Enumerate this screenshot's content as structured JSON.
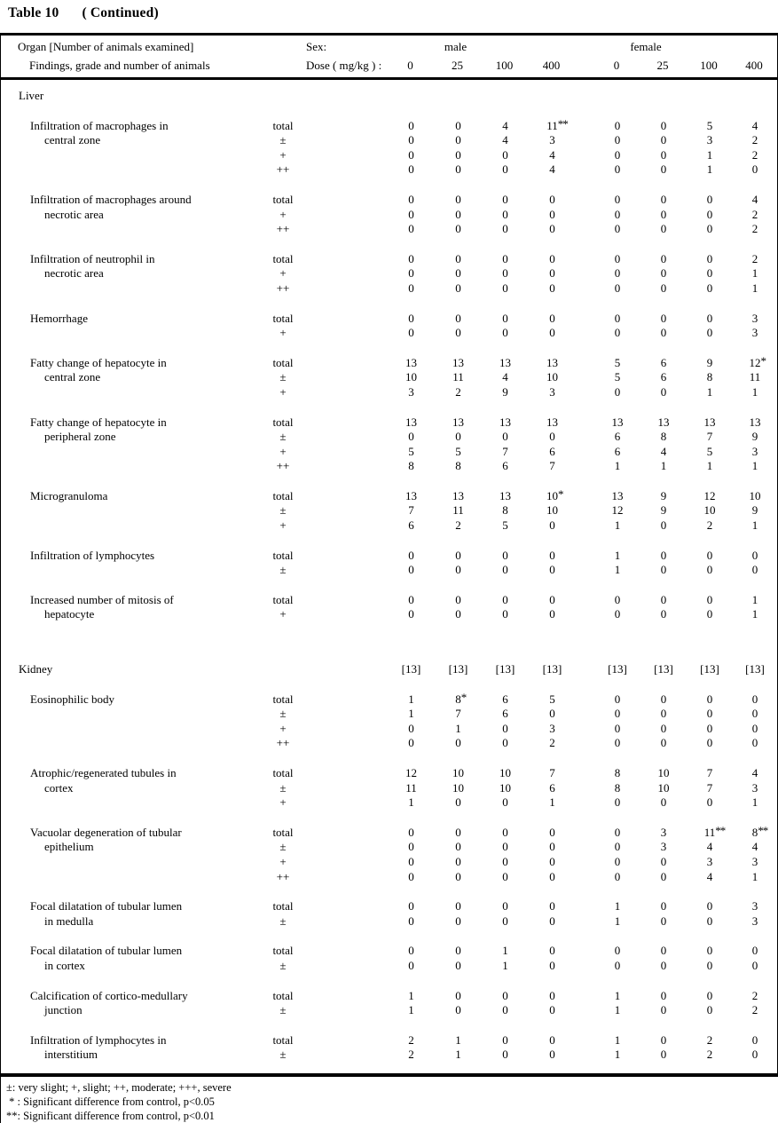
{
  "title": {
    "left": "Table 10",
    "right": "( Continued)"
  },
  "header": {
    "organ_label": "Organ [Number of animals examined]",
    "findings_label": "Findings, grade and number of animals",
    "sex_label": "Sex:",
    "dose_label": "Dose ( mg/kg ) :",
    "male_label": "male",
    "female_label": "female",
    "doses": [
      "0",
      "25",
      "100",
      "400",
      "0",
      "25",
      "100",
      "400"
    ]
  },
  "sections": [
    {
      "organ": "Liver",
      "organ_counts": null,
      "findings": [
        {
          "name": [
            "Infiltration of macrophages in",
            "central zone"
          ],
          "rows": [
            {
              "grade": "total",
              "values": [
                "0",
                "0",
                "4",
                "11**",
                "0",
                "0",
                "5",
                "4"
              ]
            },
            {
              "grade": "±",
              "values": [
                "0",
                "0",
                "4",
                "3",
                "0",
                "0",
                "3",
                "2"
              ]
            },
            {
              "grade": "+",
              "values": [
                "0",
                "0",
                "0",
                "4",
                "0",
                "0",
                "1",
                "2"
              ]
            },
            {
              "grade": "++",
              "values": [
                "0",
                "0",
                "0",
                "4",
                "0",
                "0",
                "1",
                "0"
              ]
            }
          ]
        },
        {
          "name": [
            "Infiltration of macrophages around",
            "necrotic area"
          ],
          "rows": [
            {
              "grade": "total",
              "values": [
                "0",
                "0",
                "0",
                "0",
                "0",
                "0",
                "0",
                "4"
              ]
            },
            {
              "grade": "+",
              "values": [
                "0",
                "0",
                "0",
                "0",
                "0",
                "0",
                "0",
                "2"
              ]
            },
            {
              "grade": "++",
              "values": [
                "0",
                "0",
                "0",
                "0",
                "0",
                "0",
                "0",
                "2"
              ]
            }
          ]
        },
        {
          "name": [
            "Infiltration of neutrophil in",
            "necrotic area"
          ],
          "rows": [
            {
              "grade": "total",
              "values": [
                "0",
                "0",
                "0",
                "0",
                "0",
                "0",
                "0",
                "2"
              ]
            },
            {
              "grade": "+",
              "values": [
                "0",
                "0",
                "0",
                "0",
                "0",
                "0",
                "0",
                "1"
              ]
            },
            {
              "grade": "++",
              "values": [
                "0",
                "0",
                "0",
                "0",
                "0",
                "0",
                "0",
                "1"
              ]
            }
          ]
        },
        {
          "name": [
            "Hemorrhage"
          ],
          "rows": [
            {
              "grade": "total",
              "values": [
                "0",
                "0",
                "0",
                "0",
                "0",
                "0",
                "0",
                "3"
              ]
            },
            {
              "grade": "+",
              "values": [
                "0",
                "0",
                "0",
                "0",
                "0",
                "0",
                "0",
                "3"
              ]
            }
          ]
        },
        {
          "name": [
            "Fatty change of hepatocyte in",
            "central zone"
          ],
          "rows": [
            {
              "grade": "total",
              "values": [
                "13",
                "13",
                "13",
                "13",
                "5",
                "6",
                "9",
                "12*"
              ]
            },
            {
              "grade": "±",
              "values": [
                "10",
                "11",
                "4",
                "10",
                "5",
                "6",
                "8",
                "11"
              ]
            },
            {
              "grade": "+",
              "values": [
                "3",
                "2",
                "9",
                "3",
                "0",
                "0",
                "1",
                "1"
              ]
            }
          ]
        },
        {
          "name": [
            "Fatty change of hepatocyte in",
            "peripheral zone"
          ],
          "rows": [
            {
              "grade": "total",
              "values": [
                "13",
                "13",
                "13",
                "13",
                "13",
                "13",
                "13",
                "13"
              ]
            },
            {
              "grade": "±",
              "values": [
                "0",
                "0",
                "0",
                "0",
                "6",
                "8",
                "7",
                "9"
              ]
            },
            {
              "grade": "+",
              "values": [
                "5",
                "5",
                "7",
                "6",
                "6",
                "4",
                "5",
                "3"
              ]
            },
            {
              "grade": "++",
              "values": [
                "8",
                "8",
                "6",
                "7",
                "1",
                "1",
                "1",
                "1"
              ]
            }
          ]
        },
        {
          "name": [
            "Microgranuloma"
          ],
          "rows": [
            {
              "grade": "total",
              "values": [
                "13",
                "13",
                "13",
                "10*",
                "13",
                "9",
                "12",
                "10"
              ]
            },
            {
              "grade": "±",
              "values": [
                "7",
                "11",
                "8",
                "10",
                "12",
                "9",
                "10",
                "9"
              ]
            },
            {
              "grade": "+",
              "values": [
                "6",
                "2",
                "5",
                "0",
                "1",
                "0",
                "2",
                "1"
              ]
            }
          ]
        },
        {
          "name": [
            "Infiltration of lymphocytes"
          ],
          "rows": [
            {
              "grade": "total",
              "values": [
                "0",
                "0",
                "0",
                "0",
                "1",
                "0",
                "0",
                "0"
              ]
            },
            {
              "grade": "±",
              "values": [
                "0",
                "0",
                "0",
                "0",
                "1",
                "0",
                "0",
                "0"
              ]
            }
          ]
        },
        {
          "name": [
            "Increased number of mitosis of",
            "hepatocyte"
          ],
          "rows": [
            {
              "grade": "total",
              "values": [
                "0",
                "0",
                "0",
                "0",
                "0",
                "0",
                "0",
                "1"
              ]
            },
            {
              "grade": "+",
              "values": [
                "0",
                "0",
                "0",
                "0",
                "0",
                "0",
                "0",
                "1"
              ]
            }
          ]
        }
      ]
    },
    {
      "organ": "Kidney",
      "organ_counts": [
        "[13]",
        "[13]",
        "[13]",
        "[13]",
        "[13]",
        "[13]",
        "[13]",
        "[13]"
      ],
      "findings": [
        {
          "name": [
            "Eosinophilic body"
          ],
          "rows": [
            {
              "grade": "total",
              "values": [
                "1",
                "8*",
                "6",
                "5",
                "0",
                "0",
                "0",
                "0"
              ]
            },
            {
              "grade": "±",
              "values": [
                "1",
                "7",
                "6",
                "0",
                "0",
                "0",
                "0",
                "0"
              ]
            },
            {
              "grade": "+",
              "values": [
                "0",
                "1",
                "0",
                "3",
                "0",
                "0",
                "0",
                "0"
              ]
            },
            {
              "grade": "++",
              "values": [
                "0",
                "0",
                "0",
                "2",
                "0",
                "0",
                "0",
                "0"
              ]
            }
          ]
        },
        {
          "name": [
            "Atrophic/regenerated tubules in",
            "cortex"
          ],
          "rows": [
            {
              "grade": "total",
              "values": [
                "12",
                "10",
                "10",
                "7",
                "8",
                "10",
                "7",
                "4"
              ]
            },
            {
              "grade": "±",
              "values": [
                "11",
                "10",
                "10",
                "6",
                "8",
                "10",
                "7",
                "3"
              ]
            },
            {
              "grade": "+",
              "values": [
                "1",
                "0",
                "0",
                "1",
                "0",
                "0",
                "0",
                "1"
              ]
            }
          ]
        },
        {
          "name": [
            "Vacuolar degeneration of tubular",
            "epithelium"
          ],
          "rows": [
            {
              "grade": "total",
              "values": [
                "0",
                "0",
                "0",
                "0",
                "0",
                "3",
                "11**",
                "8**"
              ]
            },
            {
              "grade": "±",
              "values": [
                "0",
                "0",
                "0",
                "0",
                "0",
                "3",
                "4",
                "4"
              ]
            },
            {
              "grade": "+",
              "values": [
                "0",
                "0",
                "0",
                "0",
                "0",
                "0",
                "3",
                "3"
              ]
            },
            {
              "grade": "++",
              "values": [
                "0",
                "0",
                "0",
                "0",
                "0",
                "0",
                "4",
                "1"
              ]
            }
          ]
        },
        {
          "name": [
            "Focal dilatation of tubular lumen",
            "in medulla"
          ],
          "rows": [
            {
              "grade": "total",
              "values": [
                "0",
                "0",
                "0",
                "0",
                "1",
                "0",
                "0",
                "3"
              ]
            },
            {
              "grade": "±",
              "values": [
                "0",
                "0",
                "0",
                "0",
                "1",
                "0",
                "0",
                "3"
              ]
            }
          ]
        },
        {
          "name": [
            "Focal dilatation of tubular lumen",
            "in cortex"
          ],
          "rows": [
            {
              "grade": "total",
              "values": [
                "0",
                "0",
                "1",
                "0",
                "0",
                "0",
                "0",
                "0"
              ]
            },
            {
              "grade": "±",
              "values": [
                "0",
                "0",
                "1",
                "0",
                "0",
                "0",
                "0",
                "0"
              ]
            }
          ]
        },
        {
          "name": [
            "Calcification of cortico-medullary",
            "junction"
          ],
          "rows": [
            {
              "grade": "total",
              "values": [
                "1",
                "0",
                "0",
                "0",
                "1",
                "0",
                "0",
                "2"
              ]
            },
            {
              "grade": "±",
              "values": [
                "1",
                "0",
                "0",
                "0",
                "1",
                "0",
                "0",
                "2"
              ]
            }
          ]
        },
        {
          "name": [
            "Infiltration of lymphocytes in",
            "interstitium"
          ],
          "rows": [
            {
              "grade": "total",
              "values": [
                "2",
                "1",
                "0",
                "0",
                "1",
                "0",
                "2",
                "0"
              ]
            },
            {
              "grade": "±",
              "values": [
                "2",
                "1",
                "0",
                "0",
                "1",
                "0",
                "2",
                "0"
              ]
            }
          ]
        }
      ]
    }
  ],
  "footnotes": [
    "±: very slight; +, slight; ++, moderate; +++, severe",
    " * : Significant difference from control, p<0.05",
    "**: Significant difference from control, p<0.01"
  ]
}
